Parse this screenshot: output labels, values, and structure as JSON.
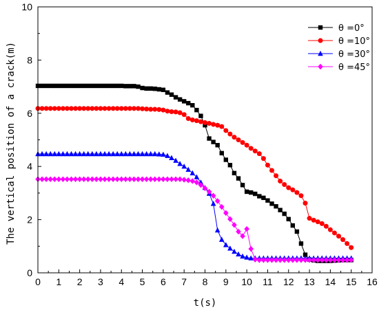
{
  "chart_data": {
    "type": "line",
    "title": "",
    "xlabel": "t(s)",
    "ylabel": "The vertical position of a crack(m)",
    "xlim": [
      0,
      16
    ],
    "ylim": [
      0,
      10
    ],
    "x_ticks": [
      0,
      1,
      2,
      3,
      4,
      5,
      6,
      7,
      8,
      9,
      10,
      11,
      12,
      13,
      14,
      15,
      16
    ],
    "y_ticks": [
      0,
      2,
      4,
      6,
      8,
      10
    ],
    "grid": false,
    "legend_position": "top-right",
    "series": [
      {
        "name": "θ =0°",
        "color": "#000000",
        "marker": "square",
        "x": [
          0,
          0.2,
          0.4,
          0.6,
          0.8,
          1,
          1.2,
          1.4,
          1.6,
          1.8,
          2,
          2.2,
          2.4,
          2.6,
          2.8,
          3,
          3.2,
          3.4,
          3.6,
          3.8,
          4,
          4.2,
          4.4,
          4.6,
          4.8,
          5,
          5.2,
          5.4,
          5.6,
          5.8,
          6,
          6.2,
          6.4,
          6.6,
          6.8,
          7,
          7.2,
          7.4,
          7.6,
          7.8,
          8,
          8.2,
          8.4,
          8.6,
          8.8,
          9,
          9.2,
          9.4,
          9.6,
          9.8,
          10,
          10.2,
          10.4,
          10.6,
          10.8,
          11,
          11.2,
          11.4,
          11.6,
          11.8,
          12,
          12.2,
          12.4,
          12.6,
          12.8,
          13,
          13.2,
          13.4,
          13.6,
          13.8,
          14,
          14.2,
          14.4,
          14.6,
          14.8,
          15
        ],
        "y": [
          7.03,
          7.03,
          7.03,
          7.03,
          7.03,
          7.03,
          7.03,
          7.03,
          7.03,
          7.03,
          7.03,
          7.03,
          7.03,
          7.03,
          7.03,
          7.03,
          7.03,
          7.03,
          7.03,
          7.03,
          7.03,
          7.02,
          7.02,
          7.02,
          7.0,
          6.95,
          6.93,
          6.93,
          6.92,
          6.9,
          6.88,
          6.78,
          6.7,
          6.6,
          6.52,
          6.45,
          6.38,
          6.3,
          6.12,
          5.9,
          5.55,
          5.05,
          4.92,
          4.8,
          4.5,
          4.25,
          4.05,
          3.75,
          3.55,
          3.3,
          3.05,
          3.02,
          2.97,
          2.88,
          2.82,
          2.72,
          2.6,
          2.5,
          2.36,
          2.22,
          2.02,
          1.78,
          1.55,
          1.1,
          0.68,
          0.5,
          0.47,
          0.45,
          0.45,
          0.45,
          0.45,
          0.46,
          0.47,
          0.48,
          0.48,
          0.48
        ]
      },
      {
        "name": "θ =10°",
        "color": "#ff0000",
        "marker": "circle",
        "x": [
          0,
          0.2,
          0.4,
          0.6,
          0.8,
          1,
          1.2,
          1.4,
          1.6,
          1.8,
          2,
          2.2,
          2.4,
          2.6,
          2.8,
          3,
          3.2,
          3.4,
          3.6,
          3.8,
          4,
          4.2,
          4.4,
          4.6,
          4.8,
          5,
          5.2,
          5.4,
          5.6,
          5.8,
          6,
          6.2,
          6.4,
          6.6,
          6.8,
          7,
          7.2,
          7.4,
          7.6,
          7.8,
          8,
          8.2,
          8.4,
          8.6,
          8.8,
          9,
          9.2,
          9.4,
          9.6,
          9.8,
          10,
          10.2,
          10.4,
          10.6,
          10.8,
          11,
          11.2,
          11.4,
          11.6,
          11.8,
          12,
          12.2,
          12.4,
          12.6,
          12.8,
          13,
          13.2,
          13.4,
          13.6,
          13.8,
          14,
          14.2,
          14.4,
          14.6,
          14.8,
          15
        ],
        "y": [
          6.18,
          6.18,
          6.18,
          6.18,
          6.18,
          6.18,
          6.18,
          6.18,
          6.18,
          6.18,
          6.18,
          6.18,
          6.18,
          6.18,
          6.18,
          6.18,
          6.18,
          6.18,
          6.18,
          6.18,
          6.18,
          6.18,
          6.18,
          6.18,
          6.18,
          6.17,
          6.16,
          6.15,
          6.15,
          6.14,
          6.12,
          6.08,
          6.06,
          6.05,
          6.02,
          5.95,
          5.8,
          5.75,
          5.72,
          5.68,
          5.65,
          5.62,
          5.58,
          5.55,
          5.5,
          5.35,
          5.22,
          5.1,
          5.0,
          4.9,
          4.8,
          4.68,
          4.58,
          4.48,
          4.3,
          4.05,
          3.85,
          3.65,
          3.45,
          3.32,
          3.2,
          3.12,
          3.02,
          2.9,
          2.62,
          2.05,
          1.98,
          1.92,
          1.85,
          1.75,
          1.62,
          1.5,
          1.38,
          1.25,
          1.1,
          0.95
        ]
      },
      {
        "name": "θ =30°",
        "color": "#0000ff",
        "marker": "triangle",
        "x": [
          0,
          0.2,
          0.4,
          0.6,
          0.8,
          1,
          1.2,
          1.4,
          1.6,
          1.8,
          2,
          2.2,
          2.4,
          2.6,
          2.8,
          3,
          3.2,
          3.4,
          3.6,
          3.8,
          4,
          4.2,
          4.4,
          4.6,
          4.8,
          5,
          5.2,
          5.4,
          5.6,
          5.8,
          6,
          6.2,
          6.4,
          6.6,
          6.8,
          7,
          7.2,
          7.4,
          7.6,
          7.8,
          8,
          8.2,
          8.4,
          8.6,
          8.8,
          9,
          9.2,
          9.4,
          9.6,
          9.8,
          10,
          10.2,
          10.4,
          10.6,
          10.8,
          11,
          11.2,
          11.4,
          11.6,
          11.8,
          12,
          12.2,
          12.4,
          12.6,
          12.8,
          13,
          13.2,
          13.4,
          13.6,
          13.8,
          14,
          14.2,
          14.4,
          14.6,
          14.8,
          15
        ],
        "y": [
          4.47,
          4.47,
          4.47,
          4.47,
          4.47,
          4.47,
          4.47,
          4.47,
          4.47,
          4.47,
          4.47,
          4.47,
          4.47,
          4.47,
          4.47,
          4.47,
          4.47,
          4.47,
          4.47,
          4.47,
          4.47,
          4.47,
          4.47,
          4.47,
          4.47,
          4.47,
          4.47,
          4.47,
          4.47,
          4.46,
          4.45,
          4.4,
          4.32,
          4.22,
          4.1,
          4.0,
          3.88,
          3.75,
          3.6,
          3.4,
          3.2,
          2.98,
          2.6,
          1.6,
          1.25,
          1.05,
          0.92,
          0.8,
          0.7,
          0.62,
          0.58,
          0.55,
          0.55,
          0.55,
          0.55,
          0.55,
          0.55,
          0.55,
          0.55,
          0.55,
          0.55,
          0.55,
          0.55,
          0.55,
          0.55,
          0.55,
          0.55,
          0.55,
          0.55,
          0.55,
          0.55,
          0.55,
          0.55,
          0.55,
          0.55,
          0.55
        ]
      },
      {
        "name": "θ =45°",
        "color": "#ff00ff",
        "marker": "diamond",
        "x": [
          0,
          0.2,
          0.4,
          0.6,
          0.8,
          1,
          1.2,
          1.4,
          1.6,
          1.8,
          2,
          2.2,
          2.4,
          2.6,
          2.8,
          3,
          3.2,
          3.4,
          3.6,
          3.8,
          4,
          4.2,
          4.4,
          4.6,
          4.8,
          5,
          5.2,
          5.4,
          5.6,
          5.8,
          6,
          6.2,
          6.4,
          6.6,
          6.8,
          7,
          7.2,
          7.4,
          7.6,
          7.8,
          8,
          8.2,
          8.4,
          8.6,
          8.8,
          9,
          9.2,
          9.4,
          9.6,
          9.8,
          10,
          10.2,
          10.4,
          10.6,
          10.8,
          11,
          11.2,
          11.4,
          11.6,
          11.8,
          12,
          12.2,
          12.4,
          12.6,
          12.8,
          13,
          13.2,
          13.4,
          13.6,
          13.8,
          14,
          14.2,
          14.4,
          14.6,
          14.8,
          15
        ],
        "y": [
          3.52,
          3.52,
          3.52,
          3.52,
          3.52,
          3.52,
          3.52,
          3.52,
          3.52,
          3.52,
          3.52,
          3.52,
          3.52,
          3.52,
          3.52,
          3.52,
          3.52,
          3.52,
          3.52,
          3.52,
          3.52,
          3.52,
          3.52,
          3.52,
          3.52,
          3.52,
          3.52,
          3.52,
          3.52,
          3.52,
          3.52,
          3.52,
          3.52,
          3.52,
          3.52,
          3.5,
          3.48,
          3.45,
          3.4,
          3.3,
          3.18,
          3.05,
          2.9,
          2.7,
          2.48,
          2.25,
          2.02,
          1.8,
          1.55,
          1.38,
          1.65,
          0.9,
          0.5,
          0.48,
          0.48,
          0.48,
          0.48,
          0.48,
          0.48,
          0.48,
          0.48,
          0.48,
          0.48,
          0.48,
          0.48,
          0.48,
          0.48,
          0.48,
          0.48,
          0.48,
          0.48,
          0.48,
          0.48,
          0.48,
          0.48,
          0.48
        ]
      }
    ]
  }
}
